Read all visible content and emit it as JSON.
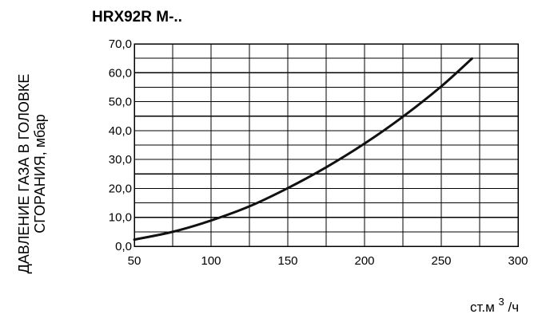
{
  "chart_data": {
    "type": "line",
    "title": "HRX92R M-..",
    "ylabel_lines": [
      "ДАВЛЕНИЕ ГАЗА В ГОЛОВКЕ",
      "СГОРАНИЯ, мбар"
    ],
    "xlabel": {
      "base": "ст.м",
      "sup": "3",
      "suffix": "/ч"
    },
    "x_ticks": [
      50,
      100,
      150,
      200,
      250,
      300
    ],
    "y_ticks": [
      "0,0",
      "10,0",
      "20,0",
      "30,0",
      "40,0",
      "50,0",
      "60,0",
      "70,0"
    ],
    "xlim": [
      50,
      300
    ],
    "ylim": [
      0,
      70
    ],
    "x_minor_step": 25,
    "y_minor_step": 5,
    "grid": true,
    "line_color": "#111111",
    "series": [
      {
        "x": [
          50,
          75,
          100,
          125,
          150,
          175,
          200,
          225,
          250,
          270
        ],
        "y": [
          2.3,
          5.0,
          8.9,
          13.8,
          20.1,
          27.3,
          35.5,
          44.8,
          55.3,
          64.9
        ]
      }
    ]
  }
}
